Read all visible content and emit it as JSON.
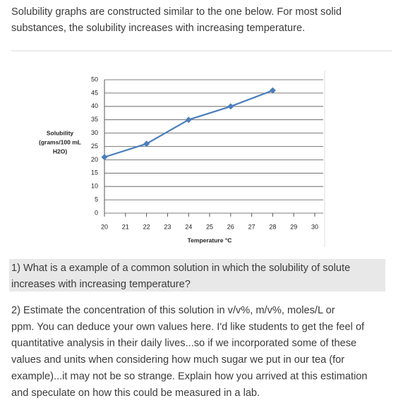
{
  "intro": {
    "lines": [
      "Solubility graphs are constructed similar to the one below.  For most solid",
      "substances, the solubility increases with increasing temperature."
    ]
  },
  "chart_data": {
    "type": "line",
    "ylabel": [
      "Solubility",
      "(grams/100 mL",
      "H2O)"
    ],
    "xlabel": "Temperature °C",
    "x": [
      20,
      22,
      24,
      26,
      28
    ],
    "values": [
      21,
      26,
      35,
      40,
      46
    ],
    "color": "#4a7ebb",
    "xlim": [
      20,
      30
    ],
    "xticks": [
      20,
      21,
      22,
      23,
      24,
      25,
      26,
      27,
      28,
      29,
      30
    ],
    "ylim": [
      0,
      50
    ],
    "yticks": [
      0,
      5,
      10,
      15,
      20,
      25,
      30,
      35,
      40,
      45,
      50
    ],
    "grid": true
  },
  "question1": {
    "lines": [
      "1) What is a example of a common solution in which the solubility of solute",
      "increases with increasing temperature?"
    ]
  },
  "question2": {
    "lines": [
      "2)  Estimate the concentration of this solution in v/v%,  m/v%,  moles/L  or",
      "ppm.  You can deduce your own values here.  I'd like students to get the feel of",
      "quantitative analysis in their daily lives...so if we incorporated some of these",
      "values and units when considering how much sugar we put in our tea (for",
      "example)...it may not be so strange.  Explain how you arrived at this estimation",
      "and speculate on how this could be measured in a lab."
    ]
  }
}
